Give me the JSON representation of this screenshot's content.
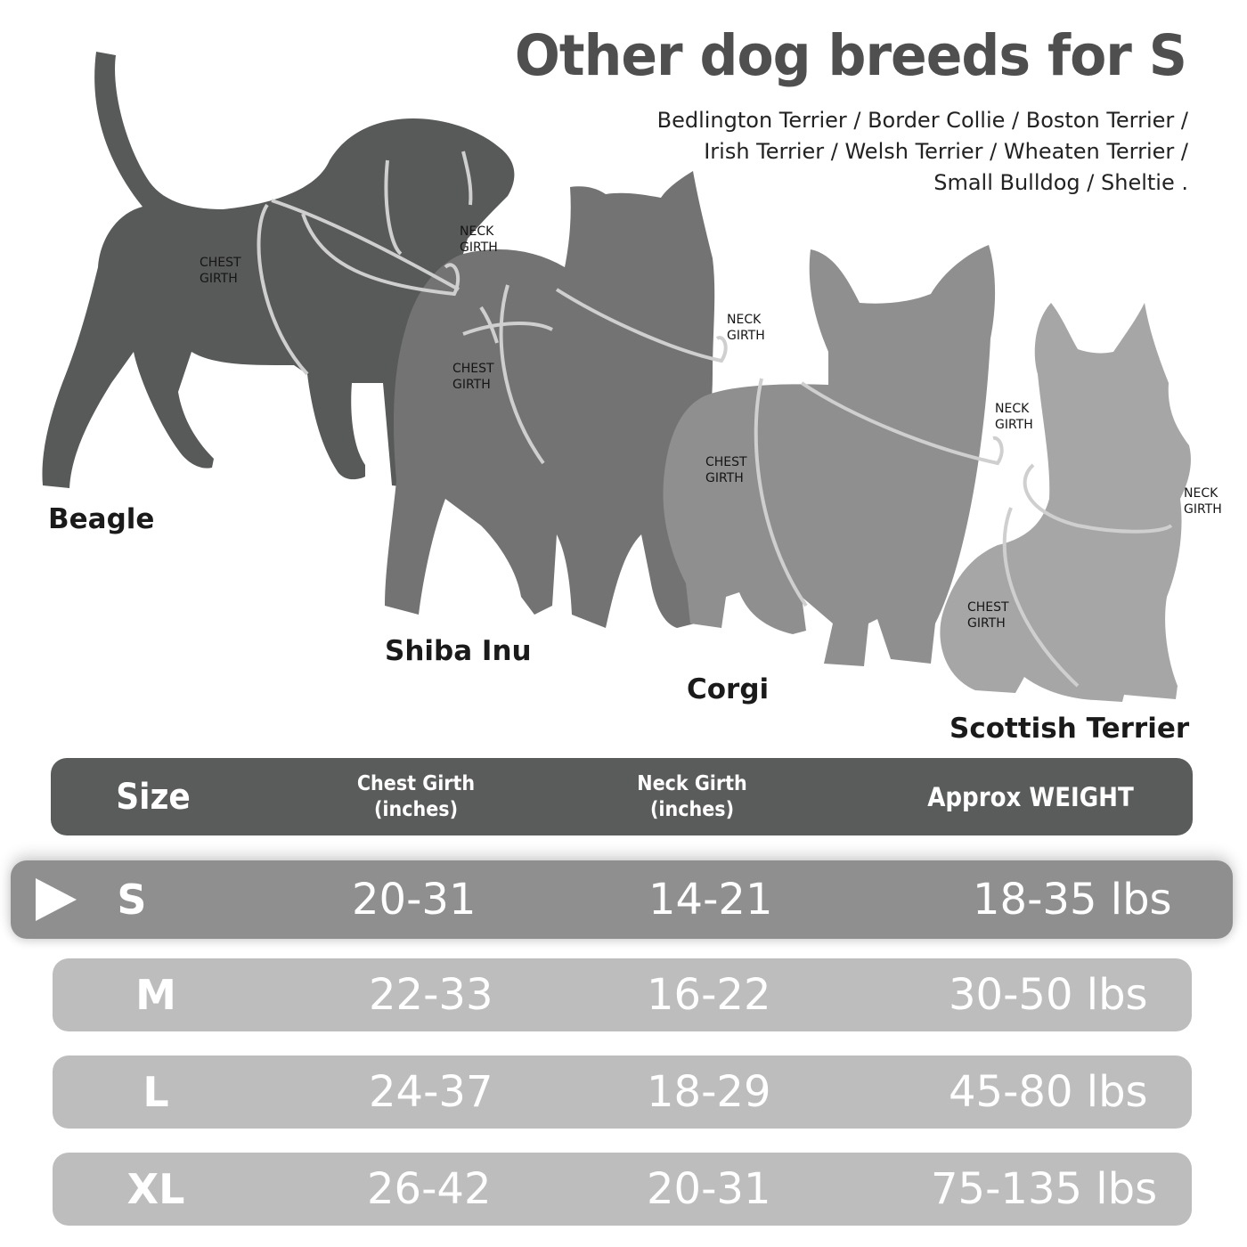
{
  "title": "Other dog breeds for S",
  "breed_lines": [
    "Bedlington Terrier / Border Collie / Boston Terrier /",
    "Irish Terrier / Welsh Terrier / Wheaten Terrier /",
    "Small Bulldog / Sheltie ."
  ],
  "dogs": {
    "beagle": {
      "name": "Beagle",
      "chest": [
        "CHEST",
        "GIRTH"
      ],
      "neck": [
        "NECK",
        "GIRTH"
      ]
    },
    "shiba": {
      "name": "Shiba Inu",
      "chest": [
        "CHEST",
        "GIRTH"
      ],
      "neck": [
        "NECK",
        "GIRTH"
      ]
    },
    "corgi": {
      "name": "Corgi",
      "chest": [
        "CHEST",
        "GIRTH"
      ],
      "neck": [
        "NECK",
        "GIRTH"
      ]
    },
    "scottish": {
      "name": "Scottish Terrier",
      "chest": [
        "CHEST",
        "GIRTH"
      ],
      "neck": [
        "NECK",
        "GIRTH"
      ]
    }
  },
  "table": {
    "headers": {
      "size": "Size",
      "chest": [
        "Chest Girth",
        "(inches)"
      ],
      "neck": [
        "Neck Girth",
        "(inches)"
      ],
      "weight": "Approx WEIGHT"
    },
    "rows": [
      {
        "size": "S",
        "chest": "20-31",
        "neck": "14-21",
        "weight": "18-35 lbs",
        "selected": true
      },
      {
        "size": "M",
        "chest": "22-33",
        "neck": "16-22",
        "weight": "30-50 lbs",
        "selected": false
      },
      {
        "size": "L",
        "chest": "24-37",
        "neck": "18-29",
        "weight": "45-80 lbs",
        "selected": false
      },
      {
        "size": "XL",
        "chest": "26-42",
        "neck": "20-31",
        "weight": "75-135 lbs",
        "selected": false
      }
    ]
  },
  "colors": {
    "beagle": "#585959",
    "shiba": "#737373",
    "corgi": "#8f8f8f",
    "scottish": "#a6a6a6",
    "girth_line": "#cfcfcf",
    "header_bg": "#5a5b5b",
    "selected_row_bg": "#8f8f8f",
    "row_bg": "#bdbdbd"
  }
}
